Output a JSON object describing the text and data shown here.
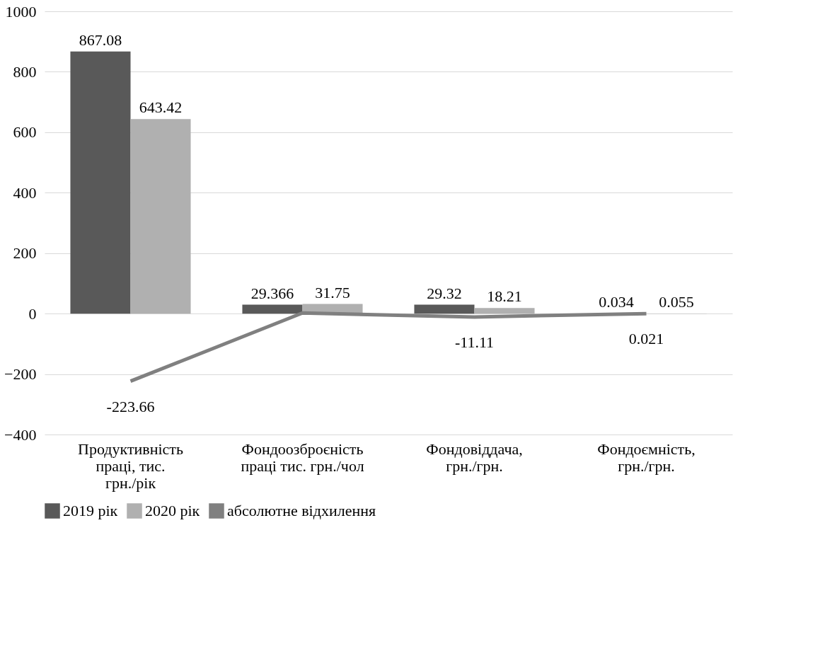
{
  "chart_data": {
    "type": "bar",
    "categories": [
      "Продуктивність праці, тис. грн./рік",
      "Фондоозброєність праці тис. грн./чол",
      "Фондовіддача, грн./грн.",
      "Фондоємність, грн./грн."
    ],
    "series": [
      {
        "name": "2019 рік",
        "color": "#595959",
        "values": [
          867.08,
          29.366,
          29.32,
          0.034
        ],
        "value_labels": [
          "867.08",
          "29.366",
          "29.32",
          "0.034"
        ]
      },
      {
        "name": "2020 рік",
        "color": "#b0b0b0",
        "values": [
          643.42,
          31.75,
          18.21,
          0.055
        ],
        "value_labels": [
          "643.42",
          "31.75",
          "18.21",
          "0.055"
        ]
      },
      {
        "name": "абсолютне відхилення",
        "type": "line",
        "color": "#808080",
        "values": [
          -223.66,
          2,
          -11.11,
          0.021
        ],
        "value_labels": [
          "-223.66",
          null,
          "-11.11",
          "0.021"
        ]
      }
    ],
    "ylim": [
      -400,
      1000
    ],
    "yticks": [
      -400,
      -200,
      0,
      200,
      400,
      600,
      800,
      1000
    ],
    "grid": "y",
    "legend": "bottom",
    "marker": "none",
    "line_style": "solid"
  }
}
